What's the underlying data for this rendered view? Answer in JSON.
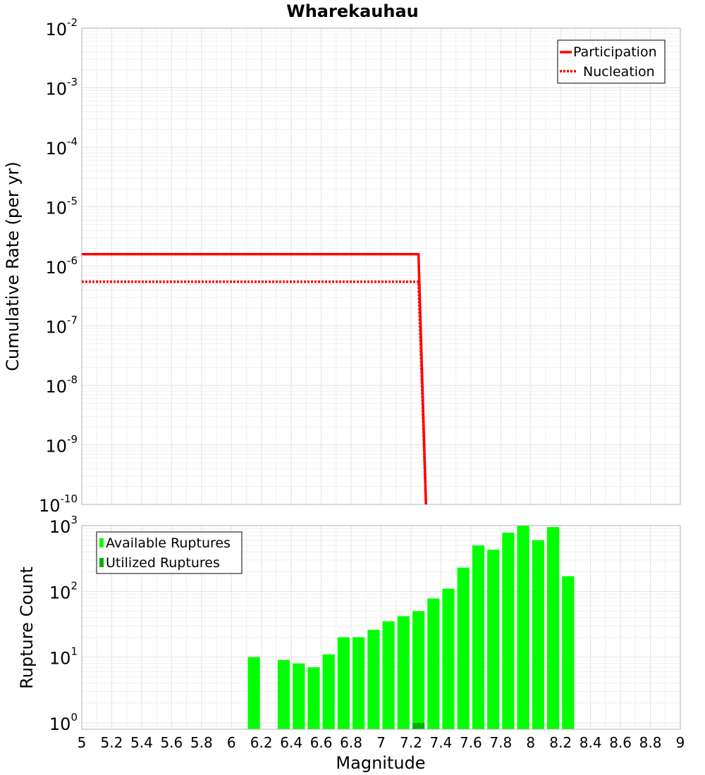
{
  "chart_data": [
    {
      "type": "line",
      "title": "Wharekauhau",
      "xlabel": "",
      "ylabel": "Cumulative Rate (per yr)",
      "xlim": [
        5,
        9
      ],
      "ylim": [
        1e-10,
        0.01
      ],
      "yscale": "log",
      "y_ticks": [
        {
          "base": "10",
          "exp": "-2",
          "value": 0.01
        },
        {
          "base": "10",
          "exp": "-3",
          "value": 0.001
        },
        {
          "base": "10",
          "exp": "-4",
          "value": 0.0001
        },
        {
          "base": "10",
          "exp": "-5",
          "value": 1e-05
        },
        {
          "base": "10",
          "exp": "-6",
          "value": 1e-06
        },
        {
          "base": "10",
          "exp": "-7",
          "value": 1e-07
        },
        {
          "base": "10",
          "exp": "-8",
          "value": 1e-08
        },
        {
          "base": "10",
          "exp": "-9",
          "value": 1e-09
        },
        {
          "base": "10",
          "exp": "-10",
          "value": 1e-10
        }
      ],
      "grid": true,
      "legend_position": "top-right",
      "series": [
        {
          "name": "Participation",
          "style": "solid",
          "color": "#ff0000",
          "x": [
            5.0,
            7.25,
            7.3
          ],
          "y": [
            1.6e-06,
            1.6e-06,
            1e-10
          ]
        },
        {
          "name": "Nucleation",
          "style": "dotted",
          "color": "#ff0000",
          "x": [
            5.0,
            7.25,
            7.3
          ],
          "y": [
            5.5e-07,
            5.5e-07,
            1e-10
          ]
        }
      ]
    },
    {
      "type": "bar",
      "xlabel": "Magnitude",
      "ylabel": "Rupture Count",
      "xlim": [
        5,
        9
      ],
      "ylim": [
        0.8,
        1000
      ],
      "yscale": "log",
      "y_ticks": [
        {
          "base": "10",
          "exp": "3",
          "value": 1000
        },
        {
          "base": "10",
          "exp": "2",
          "value": 100
        },
        {
          "base": "10",
          "exp": "1",
          "value": 10
        },
        {
          "base": "10",
          "exp": "0",
          "value": 1
        }
      ],
      "x_ticks": [
        "5",
        "5.2",
        "5.4",
        "5.6",
        "5.8",
        "6",
        "6.2",
        "6.4",
        "6.6",
        "6.8",
        "7",
        "7.2",
        "7.4",
        "7.6",
        "7.8",
        "8",
        "8.2",
        "8.4",
        "8.6",
        "8.8",
        "9"
      ],
      "bin_width": 0.1,
      "grid": true,
      "legend_position": "top-left",
      "series": [
        {
          "name": "Available Ruptures",
          "color": "#00ff00",
          "x": [
            6.15,
            6.35,
            6.45,
            6.55,
            6.65,
            6.75,
            6.85,
            6.95,
            7.05,
            7.15,
            7.25,
            7.35,
            7.45,
            7.55,
            7.65,
            7.75,
            7.85,
            7.95,
            8.05,
            8.15,
            8.25
          ],
          "values": [
            10,
            9,
            8,
            7,
            11,
            20,
            20,
            26,
            35,
            42,
            50,
            78,
            110,
            230,
            500,
            430,
            780,
            1000,
            600,
            950,
            170
          ]
        },
        {
          "name": "Utilized Ruptures",
          "color": "#00b000",
          "x": [
            7.25
          ],
          "values": [
            1
          ]
        }
      ]
    }
  ]
}
